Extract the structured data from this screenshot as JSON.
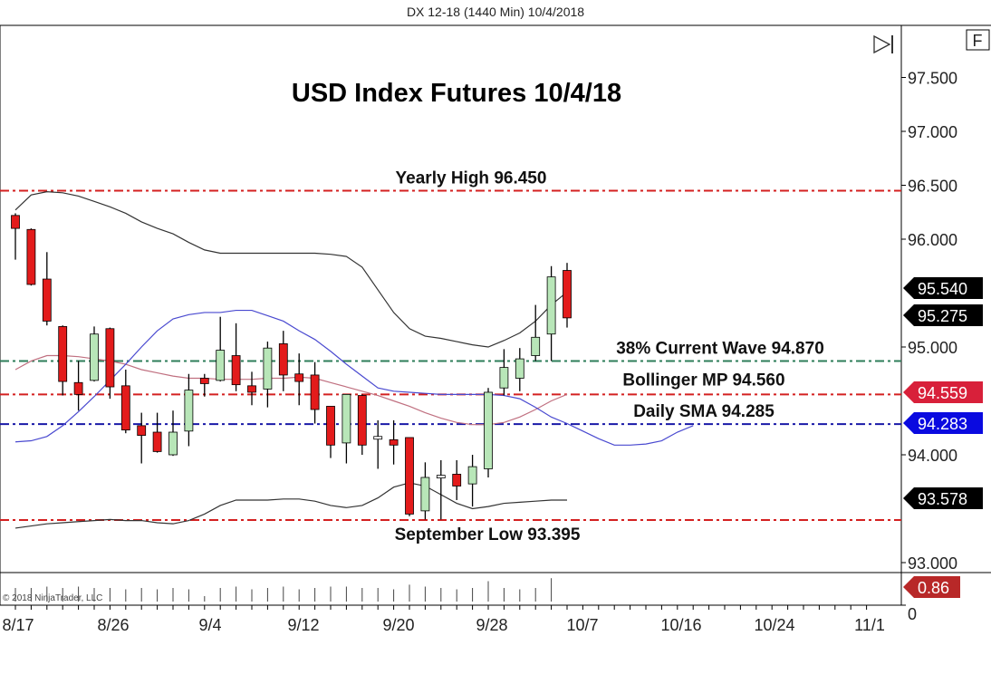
{
  "header": {
    "instrument": "DX 12-18 (1440 Min)  10/4/2018"
  },
  "buttons": {
    "scroll_end_icon": "skip-to-end-icon",
    "f_label": "F"
  },
  "copyright": "© 2018 NinjaTrader, LLC",
  "chart_data": {
    "type": "candlestick",
    "title": "USD Index Futures 10/4/18",
    "ylim": [
      92.95,
      97.85
    ],
    "y_ticks": [
      "97.500",
      "97.000",
      "96.500",
      "96.000",
      "95.000",
      "94.000",
      "93.000"
    ],
    "y_tick_values": [
      97.5,
      97.0,
      96.5,
      96.0,
      95.0,
      94.0,
      93.0
    ],
    "x_ticks": [
      "8/17",
      "8/26",
      "9/4",
      "9/12",
      "9/20",
      "9/28",
      "10/7",
      "10/16",
      "10/24",
      "11/1"
    ],
    "grid": false,
    "colors": {
      "up": "#b8e6b8",
      "down": "#e31b1b",
      "wick": "#000000"
    },
    "ohlc": [
      [
        96.22,
        96.24,
        95.81,
        96.1
      ],
      [
        96.09,
        96.1,
        95.57,
        95.58
      ],
      [
        95.63,
        95.88,
        95.2,
        95.24
      ],
      [
        95.19,
        95.2,
        94.55,
        94.68
      ],
      [
        94.67,
        94.87,
        94.41,
        94.56
      ],
      [
        94.69,
        95.19,
        94.68,
        95.12
      ],
      [
        95.17,
        95.18,
        94.52,
        94.63
      ],
      [
        94.64,
        94.79,
        94.2,
        94.23
      ],
      [
        94.27,
        94.39,
        93.92,
        94.18
      ],
      [
        94.21,
        94.39,
        94.02,
        94.03
      ],
      [
        94.0,
        94.41,
        93.99,
        94.21
      ],
      [
        94.22,
        94.75,
        94.08,
        94.6
      ],
      [
        94.71,
        94.75,
        94.54,
        94.66
      ],
      [
        94.69,
        95.28,
        94.68,
        94.97
      ],
      [
        94.92,
        95.22,
        94.59,
        94.65
      ],
      [
        94.64,
        94.77,
        94.46,
        94.58
      ],
      [
        94.61,
        95.05,
        94.44,
        94.99
      ],
      [
        95.03,
        95.15,
        94.59,
        94.74
      ],
      [
        94.75,
        94.94,
        94.46,
        94.68
      ],
      [
        94.74,
        94.86,
        94.29,
        94.42
      ],
      [
        94.45,
        94.45,
        93.97,
        94.09
      ],
      [
        94.11,
        94.56,
        93.92,
        94.56
      ],
      [
        94.55,
        94.56,
        94.0,
        94.09
      ],
      [
        94.17,
        94.32,
        93.87,
        94.17
      ],
      [
        94.14,
        94.32,
        93.91,
        94.09
      ],
      [
        94.16,
        94.16,
        93.43,
        93.45
      ],
      [
        93.48,
        93.93,
        93.4,
        93.79
      ],
      [
        93.81,
        93.95,
        93.4,
        93.81
      ],
      [
        93.82,
        93.95,
        93.58,
        93.71
      ],
      [
        93.73,
        94.0,
        93.52,
        93.89
      ],
      [
        93.87,
        94.62,
        93.79,
        94.58
      ],
      [
        94.62,
        94.98,
        94.55,
        94.81
      ],
      [
        94.71,
        94.99,
        94.59,
        94.89
      ],
      [
        94.92,
        95.39,
        94.87,
        95.09
      ],
      [
        95.12,
        95.75,
        94.87,
        95.65
      ],
      [
        95.71,
        95.78,
        95.18,
        95.27
      ]
    ],
    "upper_band": [
      96.27,
      96.41,
      96.44,
      96.43,
      96.4,
      96.35,
      96.3,
      96.24,
      96.16,
      96.1,
      96.05,
      95.97,
      95.9,
      95.87,
      95.87,
      95.87,
      95.87,
      95.87,
      95.87,
      95.87,
      95.86,
      95.84,
      95.74,
      95.53,
      95.32,
      95.17,
      95.1,
      95.08,
      95.05,
      95.02,
      95.0,
      95.06,
      95.13,
      95.24,
      95.39,
      95.51
    ],
    "lower_band": [
      93.32,
      93.34,
      93.36,
      93.37,
      93.38,
      93.39,
      93.4,
      93.39,
      93.39,
      93.37,
      93.36,
      93.39,
      93.45,
      93.53,
      93.58,
      93.58,
      93.58,
      93.59,
      93.59,
      93.57,
      93.53,
      93.51,
      93.53,
      93.6,
      93.7,
      93.74,
      93.71,
      93.63,
      93.55,
      93.5,
      93.52,
      93.55,
      93.56,
      93.57,
      93.58,
      93.58
    ],
    "middle_band": [
      94.79,
      94.87,
      94.92,
      94.92,
      94.91,
      94.89,
      94.87,
      94.84,
      94.79,
      94.76,
      94.73,
      94.71,
      94.71,
      94.7,
      94.7,
      94.7,
      94.71,
      94.71,
      94.72,
      94.71,
      94.67,
      94.63,
      94.59,
      94.55,
      94.5,
      94.45,
      94.39,
      94.34,
      94.3,
      94.28,
      94.28,
      94.3,
      94.35,
      94.42,
      94.5,
      94.56
    ],
    "displaced_ma": [
      94.12,
      94.13,
      94.17,
      94.27,
      94.4,
      94.54,
      94.69,
      94.84,
      95.0,
      95.15,
      95.26,
      95.3,
      95.32,
      95.32,
      95.34,
      95.34,
      95.29,
      95.24,
      95.15,
      95.07,
      94.96,
      94.84,
      94.73,
      94.62,
      94.59,
      94.58,
      94.57,
      94.56,
      94.56,
      94.56,
      94.56,
      94.55,
      94.52,
      94.44,
      94.35,
      94.29,
      94.22,
      94.15,
      94.09,
      94.09,
      94.1,
      94.13,
      94.21,
      94.27
    ],
    "volume": [
      0.5,
      0.5,
      0.55,
      0.5,
      0.55,
      0.5,
      0.5,
      0.45,
      0.5,
      0.45,
      0.5,
      0.45,
      0.2,
      0.5,
      0.55,
      0.45,
      0.5,
      0.55,
      0.45,
      0.5,
      0.55,
      0.55,
      0.5,
      0.5,
      0.45,
      0.62,
      0.55,
      0.5,
      0.45,
      0.5,
      0.75,
      0.5,
      0.45,
      0.5,
      0.86,
      0
    ],
    "volume_ticks": [
      "0"
    ],
    "levels": [
      {
        "label": "Yearly High 96.450",
        "value": 96.45,
        "color": "#d42020"
      },
      {
        "label": "38% Current Wave 94.870",
        "value": 94.87,
        "color": "#2e7d5a"
      },
      {
        "label": "Bollinger MP 94.560",
        "value": 94.56,
        "color": "#d42020"
      },
      {
        "label": "Daily SMA 94.285",
        "value": 94.285,
        "color": "#1a1aa8"
      },
      {
        "label": "September Low 93.395",
        "value": 93.395,
        "color": "#d42020"
      }
    ],
    "price_tags": [
      {
        "text": "95.540",
        "value": 95.54,
        "color": "#000000"
      },
      {
        "text": "95.275",
        "value": 95.275,
        "color": "#000000"
      },
      {
        "text": "94.559",
        "value": 94.559,
        "color": "#d8203a"
      },
      {
        "text": "94.283",
        "value": 94.283,
        "color": "#0a0ae0"
      },
      {
        "text": "93.578",
        "value": 93.578,
        "color": "#000000"
      }
    ],
    "volume_tag": {
      "text": "0.86",
      "color": "#b82828"
    }
  }
}
